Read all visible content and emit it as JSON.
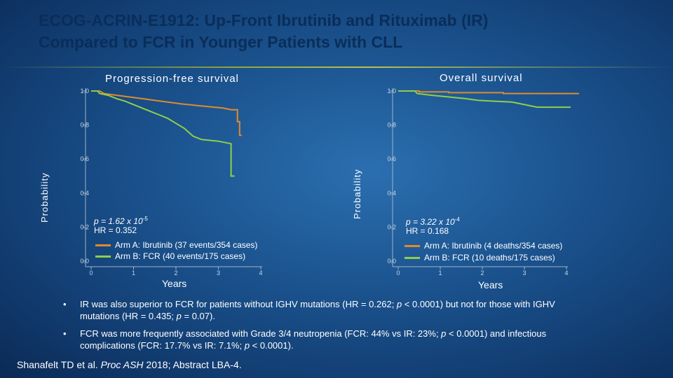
{
  "title_line1": "ECOG-ACRIN-E1912: Up-Front Ibrutinib and Rituximab (IR)",
  "title_line2": "Compared to FCR in Younger Patients with CLL",
  "colors": {
    "ibrutinib": "#e08a2c",
    "fcr": "#8fcf4a",
    "axis": "#9fb3c8",
    "title": "#0a2d5a"
  },
  "chart_data": [
    {
      "type": "line",
      "step": true,
      "title": "Progression-free survival",
      "xlabel": "Years",
      "ylabel": "Probability",
      "xlim": [
        0,
        4
      ],
      "ylim": [
        0,
        1
      ],
      "xticks": [
        "0",
        "1",
        "2",
        "3",
        "4"
      ],
      "yticks": [
        "0.0",
        "0.2",
        "0.4",
        "0.6",
        "0.8",
        "1.0"
      ],
      "stats": {
        "p_value": "p = 1.62 x 10",
        "p_exp": "-5",
        "hr": "HR = 0.352"
      },
      "series": [
        {
          "name": "Arm A: Ibrutinib (37 events/354 cases)",
          "color": "#e08a2c",
          "points": [
            [
              0,
              1.0
            ],
            [
              0.2,
              1.0
            ],
            [
              0.3,
              0.985
            ],
            [
              0.6,
              0.975
            ],
            [
              0.9,
              0.965
            ],
            [
              1.2,
              0.955
            ],
            [
              1.5,
              0.945
            ],
            [
              1.8,
              0.935
            ],
            [
              2.1,
              0.925
            ],
            [
              2.5,
              0.915
            ],
            [
              2.9,
              0.905
            ],
            [
              3.1,
              0.9
            ],
            [
              3.3,
              0.89
            ],
            [
              3.45,
              0.89
            ],
            [
              3.45,
              0.82
            ],
            [
              3.5,
              0.82
            ],
            [
              3.5,
              0.74
            ],
            [
              3.55,
              0.74
            ]
          ]
        },
        {
          "name": "Arm B: FCR (40 events/175 cases)",
          "color": "#8fcf4a",
          "points": [
            [
              0,
              1.0
            ],
            [
              0.15,
              1.0
            ],
            [
              0.2,
              0.985
            ],
            [
              0.4,
              0.975
            ],
            [
              0.6,
              0.955
            ],
            [
              0.8,
              0.94
            ],
            [
              1.0,
              0.92
            ],
            [
              1.2,
              0.9
            ],
            [
              1.4,
              0.88
            ],
            [
              1.6,
              0.86
            ],
            [
              1.8,
              0.84
            ],
            [
              2.0,
              0.81
            ],
            [
              2.2,
              0.78
            ],
            [
              2.4,
              0.735
            ],
            [
              2.6,
              0.715
            ],
            [
              3.0,
              0.705
            ],
            [
              3.3,
              0.69
            ],
            [
              3.3,
              0.5
            ],
            [
              3.38,
              0.5
            ]
          ]
        }
      ]
    },
    {
      "type": "line",
      "step": true,
      "title": "Overall survival",
      "xlabel": "Years",
      "ylabel": "Probability",
      "xlim": [
        0,
        4
      ],
      "ylim": [
        0,
        1
      ],
      "xticks": [
        "0",
        "1",
        "2",
        "3",
        "4"
      ],
      "yticks": [
        "0.0",
        "0.2",
        "0.4",
        "0.6",
        "0.8",
        "1.0"
      ],
      "stats": {
        "p_value": "p = 3.22 x 10",
        "p_exp": "-4",
        "hr": "HR = 0.168"
      },
      "series": [
        {
          "name": "Arm A: Ibrutinib (4 deaths/354 cases)",
          "color": "#e08a2c",
          "points": [
            [
              0,
              1.0
            ],
            [
              0.5,
              1.0
            ],
            [
              0.5,
              0.995
            ],
            [
              1.2,
              0.995
            ],
            [
              1.2,
              0.99
            ],
            [
              2.5,
              0.99
            ],
            [
              2.5,
              0.985
            ],
            [
              4.3,
              0.985
            ]
          ]
        },
        {
          "name": "Arm B: FCR (10 deaths/175 cases)",
          "color": "#8fcf4a",
          "points": [
            [
              0,
              1.0
            ],
            [
              0.4,
              1.0
            ],
            [
              0.45,
              0.985
            ],
            [
              0.8,
              0.975
            ],
            [
              1.2,
              0.965
            ],
            [
              1.6,
              0.955
            ],
            [
              1.9,
              0.945
            ],
            [
              2.3,
              0.94
            ],
            [
              2.7,
              0.935
            ],
            [
              3.0,
              0.92
            ],
            [
              3.3,
              0.905
            ],
            [
              4.1,
              0.905
            ]
          ]
        }
      ]
    }
  ],
  "bullets": [
    {
      "pre": "IR was also superior to FCR for patients without IGHV mutations (HR = 0.262; ",
      "i1": "p",
      "mid": " < 0.0001) but not for those with IGHV mutations (HR = 0.435; ",
      "i2": "p",
      "post": " = 0.07)."
    },
    {
      "pre": "FCR was more frequently associated with Grade 3/4 neutropenia (FCR: 44% vs IR: 23%; ",
      "i1": "p",
      "mid": " < 0.0001) and infectious complications (FCR: 17.7% vs IR: 7.1%; ",
      "i2": "p",
      "post": " < 0.0001)."
    }
  ],
  "bullet_marker": "•",
  "reference": {
    "authors": "Shanafelt TD et al. ",
    "journal": "Proc ASH",
    "rest": " 2018; Abstract LBA-4."
  }
}
